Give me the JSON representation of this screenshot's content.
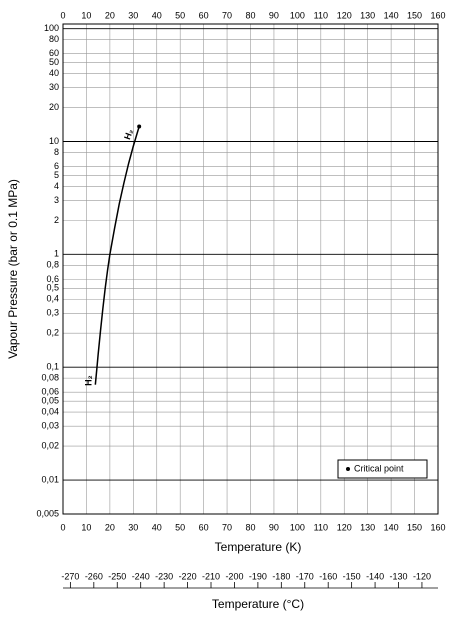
{
  "chart_data": {
    "type": "line",
    "log_y": true,
    "grid": true,
    "ylabel": "Vapour Pressure (bar or 0.1 MPa)",
    "xlabel": "Temperature (K)",
    "x2label": "Temperature (°C)",
    "xlim": [
      0,
      160
    ],
    "xticks": [
      0,
      10,
      20,
      30,
      40,
      50,
      60,
      70,
      80,
      90,
      100,
      110,
      120,
      130,
      140,
      150,
      160
    ],
    "ylim": [
      0.005,
      110
    ],
    "yticks": [
      {
        "value": 0.005,
        "label": "0,005"
      },
      {
        "value": 0.01,
        "label": "0,01"
      },
      {
        "value": 0.02,
        "label": "0,02"
      },
      {
        "value": 0.03,
        "label": "0,03"
      },
      {
        "value": 0.04,
        "label": "0,04"
      },
      {
        "value": 0.05,
        "label": "0,05"
      },
      {
        "value": 0.06,
        "label": "0,06"
      },
      {
        "value": 0.08,
        "label": "0,08"
      },
      {
        "value": 0.1,
        "label": "0,1"
      },
      {
        "value": 0.2,
        "label": "0,2"
      },
      {
        "value": 0.3,
        "label": "0,3"
      },
      {
        "value": 0.4,
        "label": "0,4"
      },
      {
        "value": 0.5,
        "label": "0,5"
      },
      {
        "value": 0.6,
        "label": "0,6"
      },
      {
        "value": 0.8,
        "label": "0,8"
      },
      1,
      2,
      3,
      4,
      5,
      6,
      8,
      10,
      20,
      30,
      40,
      50,
      60,
      80,
      100
    ],
    "x2lim": [
      -273.15,
      -113.15
    ],
    "x2ticks": [
      -270,
      -260,
      -250,
      -240,
      -230,
      -220,
      -210,
      -200,
      -190,
      -180,
      -170,
      -160,
      -150,
      -140,
      -130,
      -120
    ],
    "series": [
      {
        "name": "H₂",
        "color": "#000000",
        "x": [
          13.8,
          14.5,
          15,
          16,
          17,
          18,
          19,
          20,
          22,
          24,
          26,
          28,
          30,
          32.5
        ],
        "values": [
          0.07,
          0.1,
          0.13,
          0.21,
          0.33,
          0.5,
          0.72,
          1.0,
          1.7,
          2.8,
          4.3,
          6.4,
          9.1,
          13.6
        ]
      }
    ],
    "critical_point": {
      "x": 32.5,
      "y": 13.6,
      "label": "Critical point"
    },
    "legend": "lower right"
  }
}
